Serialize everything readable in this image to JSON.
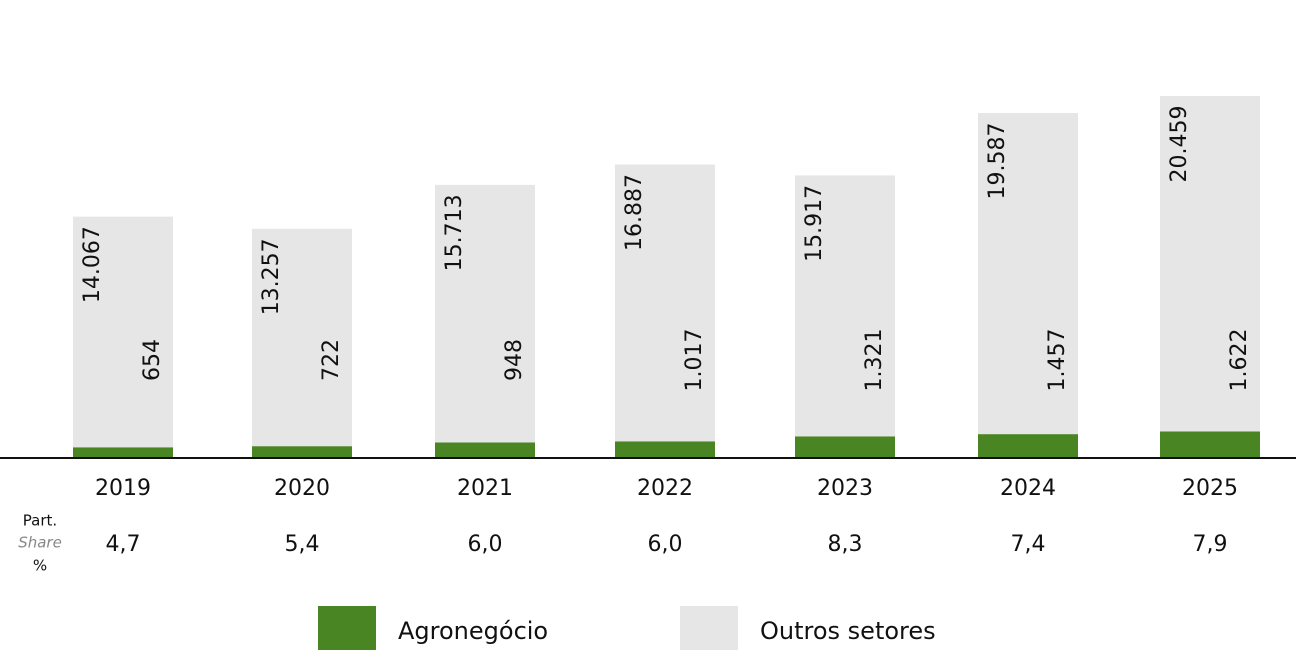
{
  "chart_data": {
    "type": "stacked_bar",
    "categories": [
      "2019",
      "2020",
      "2021",
      "2022",
      "2023",
      "2024",
      "2025"
    ],
    "series": [
      {
        "name": "Agronegócio",
        "color": "#4a8523",
        "values": [
          654,
          722,
          948,
          1017,
          1321,
          1457,
          1622
        ],
        "value_labels": [
          "654",
          "722",
          "948",
          "1.017",
          "1.321",
          "1.457",
          "1.622"
        ]
      },
      {
        "name": "Outros setores",
        "color": "#e6e6e6",
        "values": [
          14067,
          13257,
          15713,
          16887,
          15917,
          19587,
          20459
        ],
        "value_labels": [
          "14.067",
          "13.257",
          "15.713",
          "16.887",
          "15.917",
          "19.587",
          "20.459"
        ]
      }
    ],
    "share_title": [
      "Part.",
      "Share",
      "%"
    ],
    "share": [
      "4,7",
      "5,4",
      "6,0",
      "6,0",
      "8,3",
      "7,4",
      "7,9"
    ]
  }
}
